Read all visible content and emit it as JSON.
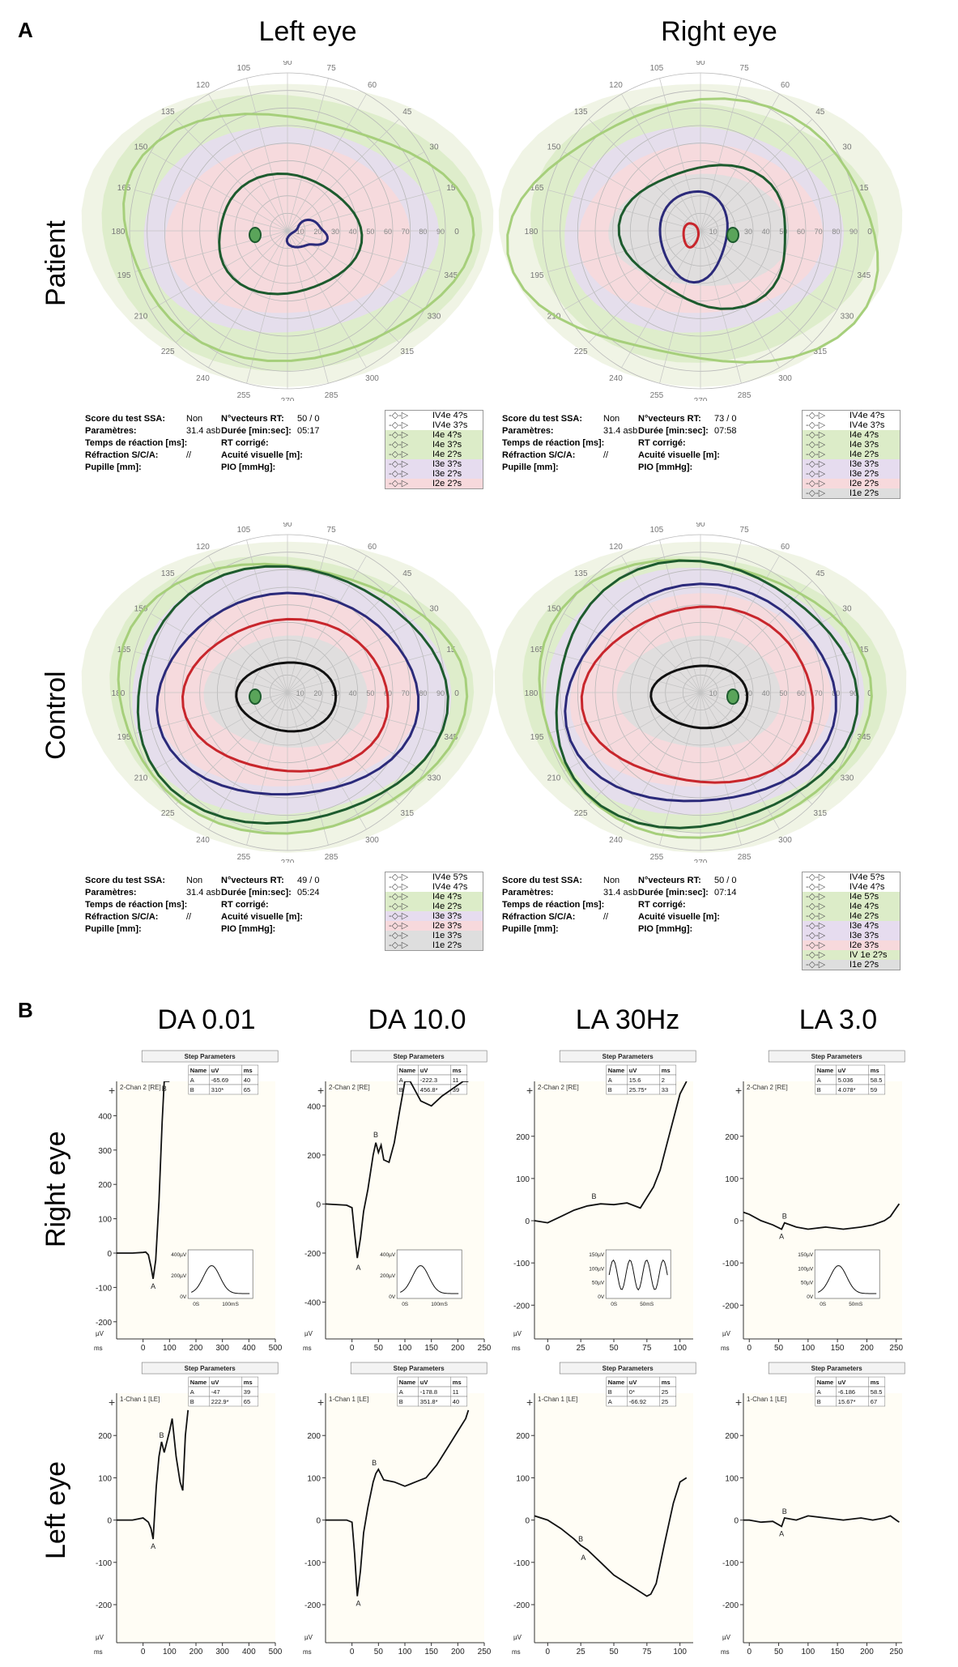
{
  "panels": {
    "a": "A",
    "b": "B"
  },
  "columns": {
    "left_eye": "Left eye",
    "right_eye": "Right eye"
  },
  "rows_a": {
    "patient": "Patient",
    "control": "Control"
  },
  "rows_b": {
    "right_eye": "Right eye",
    "left_eye": "Left eye"
  },
  "erg_titles": [
    "DA 0.01",
    "DA 10.0",
    "LA 30Hz",
    "LA 3.0"
  ],
  "polar": {
    "angle_labels": [
      "0",
      "15",
      "30",
      "45",
      "60",
      "75",
      "90",
      "105",
      "120",
      "135",
      "150",
      "165",
      "180",
      "195",
      "210",
      "225",
      "240",
      "255",
      "270",
      "285",
      "300",
      "315",
      "330",
      "345"
    ],
    "radial_labels": [
      "10",
      "20",
      "30",
      "40",
      "50",
      "60",
      "70",
      "80",
      "90"
    ]
  },
  "info_labels": {
    "score": "Score du test SSA:",
    "params": "Paramètres:",
    "temps": "Temps de réaction [ms]:",
    "refraction": "Réfraction S/C/A:",
    "pupille": "Pupille [mm]:",
    "vecteurs": "N°vecteurs RT:",
    "duree": "Durée [min:sec]:",
    "rt_corrige": "RT corrigé:",
    "acuite": "Acuité visuelle [m]:",
    "pio": "PIO [mmHg]:"
  },
  "fields": [
    {
      "score": "Non",
      "params": "31.4 asb",
      "refraction": "//",
      "vecteurs": "50 / 0",
      "duree": "05:17",
      "legend": [
        {
          "name": "IV4e",
          "t": "4?s"
        },
        {
          "name": "IV4e",
          "t": "3?s"
        },
        {
          "name": "I4e",
          "t": "4?s"
        },
        {
          "name": "I4e",
          "t": "3?s"
        },
        {
          "name": "I4e",
          "t": "2?s"
        },
        {
          "name": "I3e",
          "t": "3?s"
        },
        {
          "name": "I3e",
          "t": "2?s"
        },
        {
          "name": "I2e",
          "t": "2?s"
        }
      ]
    },
    {
      "score": "Non",
      "params": "31.4 asb",
      "refraction": "//",
      "vecteurs": "73 / 0",
      "duree": "07:58",
      "legend": [
        {
          "name": "IV4e",
          "t": "4?s"
        },
        {
          "name": "IV4e",
          "t": "3?s"
        },
        {
          "name": "I4e",
          "t": "4?s"
        },
        {
          "name": "I4e",
          "t": "3?s"
        },
        {
          "name": "I4e",
          "t": "2?s"
        },
        {
          "name": "I3e",
          "t": "3?s"
        },
        {
          "name": "I3e",
          "t": "2?s"
        },
        {
          "name": "I2e",
          "t": "2?s"
        },
        {
          "name": "I1e",
          "t": "2?s"
        }
      ]
    },
    {
      "score": "Non",
      "params": "31.4 asb",
      "refraction": "//",
      "vecteurs": "49 / 0",
      "duree": "05:24",
      "legend": [
        {
          "name": "IV4e",
          "t": "5?s"
        },
        {
          "name": "IV4e",
          "t": "4?s"
        },
        {
          "name": "I4e",
          "t": "4?s"
        },
        {
          "name": "I4e",
          "t": "2?s"
        },
        {
          "name": "I3e",
          "t": "3?s"
        },
        {
          "name": "I2e",
          "t": "3?s"
        },
        {
          "name": "I1e",
          "t": "3?s"
        },
        {
          "name": "I1e",
          "t": "2?s"
        }
      ]
    },
    {
      "score": "Non",
      "params": "31.4 asb",
      "refraction": "//",
      "vecteurs": "50 / 0",
      "duree": "07:14",
      "legend": [
        {
          "name": "IV4e",
          "t": "5?s"
        },
        {
          "name": "IV4e",
          "t": "4?s"
        },
        {
          "name": "I4e",
          "t": "5?s"
        },
        {
          "name": "I4e",
          "t": "4?s"
        },
        {
          "name": "I4e",
          "t": "2?s"
        },
        {
          "name": "I3e",
          "t": "4?s"
        },
        {
          "name": "I3e",
          "t": "3?s"
        },
        {
          "name": "I2e",
          "t": "3?s"
        },
        {
          "name": "IV 1e",
          "t": "2?s"
        },
        {
          "name": "I1e",
          "t": "2?s"
        }
      ]
    }
  ],
  "chart_data": [
    {
      "type": "line",
      "title": "DA 0.01 – Right eye",
      "channel": "2-Chan 2 [RE]",
      "step_parameters": "Step Parameters",
      "xlabel": "ms",
      "ylabel": "µV",
      "xlim": [
        -100,
        500
      ],
      "ylim": [
        -250,
        500
      ],
      "xticks": [
        0,
        100,
        200,
        300,
        400,
        500
      ],
      "yticks": [
        -200,
        -100,
        0,
        100,
        200,
        300,
        400
      ],
      "x": [
        -100,
        -40,
        0,
        10,
        20,
        30,
        38,
        48,
        60,
        72,
        80,
        90,
        100
      ],
      "y": [
        0,
        0,
        2,
        3,
        -5,
        -40,
        -75,
        -20,
        150,
        380,
        500,
        500,
        500
      ],
      "markers": [
        {
          "label": "A",
          "x": 38,
          "y": -75
        },
        {
          "label": "B",
          "x": 80,
          "y": 460
        }
      ],
      "table": {
        "headers": [
          "Name",
          "uV",
          "ms"
        ],
        "rows": [
          [
            "A",
            "-65.69",
            "40"
          ],
          [
            "B",
            "310*",
            "65"
          ]
        ]
      },
      "inset": {
        "yticks": [
          "400µV",
          "200µV",
          "0V"
        ],
        "xticks": [
          "0S",
          "100mS"
        ]
      }
    },
    {
      "type": "line",
      "title": "DA 10.0 – Right eye",
      "channel": "2-Chan 2 [RE]",
      "step_parameters": "Step Parameters",
      "xlabel": "ms",
      "ylabel": "µV",
      "xlim": [
        -50,
        250
      ],
      "ylim": [
        -550,
        500
      ],
      "xticks": [
        0,
        50,
        100,
        150,
        200,
        250
      ],
      "yticks": [
        -400,
        -200,
        0,
        200,
        400
      ],
      "x": [
        -50,
        -10,
        0,
        5,
        10,
        16,
        22,
        30,
        40,
        45,
        50,
        55,
        60,
        70,
        80,
        90,
        100,
        110,
        130,
        150,
        170,
        190,
        210,
        220
      ],
      "y": [
        0,
        -5,
        -15,
        -120,
        -220,
        -140,
        -30,
        60,
        200,
        250,
        210,
        240,
        180,
        170,
        250,
        380,
        500,
        500,
        420,
        400,
        440,
        470,
        500,
        500
      ],
      "markers": [
        {
          "label": "A",
          "x": 12,
          "y": -230
        },
        {
          "label": "B",
          "x": 45,
          "y": 255
        }
      ],
      "table": {
        "headers": [
          "Name",
          "uV",
          "ms"
        ],
        "rows": [
          [
            "A",
            "-222.3",
            "11"
          ],
          [
            "B",
            "456.8*",
            "39"
          ]
        ]
      },
      "inset": {
        "yticks": [
          "400µV",
          "200µV",
          "0V"
        ],
        "xticks": [
          "0S",
          "100mS"
        ]
      }
    },
    {
      "type": "line",
      "title": "LA 30Hz – Right eye",
      "channel": "2-Chan 2 [RE]",
      "step_parameters": "Step Parameters",
      "xlabel": "ms",
      "ylabel": "µV",
      "xlim": [
        -10,
        110
      ],
      "ylim": [
        -280,
        330
      ],
      "xticks": [
        0,
        25,
        50,
        75,
        100
      ],
      "yticks": [
        -200,
        -100,
        0,
        100,
        200
      ],
      "x": [
        -10,
        0,
        10,
        20,
        30,
        40,
        50,
        60,
        70,
        75,
        80,
        85,
        90,
        95,
        100,
        105
      ],
      "y": [
        0,
        -5,
        10,
        25,
        35,
        40,
        38,
        42,
        30,
        55,
        80,
        120,
        180,
        240,
        300,
        330
      ],
      "markers": [
        {
          "label": "B",
          "x": 35,
          "y": 42
        }
      ],
      "table": {
        "headers": [
          "Name",
          "uV",
          "ms"
        ],
        "rows": [
          [
            "A",
            "15.6",
            "2"
          ],
          [
            "B",
            "25.75*",
            "33"
          ]
        ]
      },
      "inset": {
        "yticks": [
          "150µV",
          "100µV",
          "50µV",
          "0V"
        ],
        "xticks": [
          "0S",
          "50mS"
        ]
      }
    },
    {
      "type": "line",
      "title": "LA 3.0 – Right eye",
      "channel": "2-Chan 2 [RE]",
      "step_parameters": "Step Parameters",
      "xlabel": "ms",
      "ylabel": "µV",
      "xlim": [
        -10,
        260
      ],
      "ylim": [
        -280,
        330
      ],
      "xticks": [
        0,
        50,
        100,
        150,
        200,
        250
      ],
      "yticks": [
        -200,
        -100,
        0,
        100,
        200
      ],
      "x": [
        -10,
        0,
        20,
        40,
        55,
        60,
        80,
        100,
        130,
        160,
        190,
        210,
        230,
        240,
        250,
        255
      ],
      "y": [
        20,
        15,
        0,
        -10,
        -20,
        -5,
        -15,
        -20,
        -15,
        -20,
        -15,
        -10,
        0,
        10,
        30,
        40
      ],
      "markers": [
        {
          "label": "A",
          "x": 55,
          "y": -20
        },
        {
          "label": "B",
          "x": 60,
          "y": -5
        }
      ],
      "table": {
        "headers": [
          "Name",
          "uV",
          "ms"
        ],
        "rows": [
          [
            "A",
            "5.036",
            "58.5"
          ],
          [
            "B",
            "4.078*",
            "59"
          ]
        ]
      },
      "inset": {
        "yticks": [
          "150µV",
          "100µV",
          "50µV",
          "0V"
        ],
        "xticks": [
          "0S",
          "50mS"
        ]
      }
    },
    {
      "type": "line",
      "title": "DA 0.01 – Left eye",
      "channel": "1-Chan 1 [LE]",
      "step_parameters": "Step Parameters",
      "xlabel": "ms",
      "ylabel": "µV",
      "xlim": [
        -100,
        500
      ],
      "ylim": [
        -290,
        300
      ],
      "xticks": [
        0,
        100,
        200,
        300,
        400,
        500
      ],
      "yticks": [
        -200,
        -100,
        0,
        100,
        200
      ],
      "x": [
        -100,
        -40,
        0,
        20,
        30,
        38,
        50,
        60,
        70,
        80,
        100,
        110,
        125,
        140,
        150,
        160,
        170
      ],
      "y": [
        0,
        0,
        5,
        -5,
        -20,
        -45,
        80,
        150,
        185,
        160,
        210,
        240,
        150,
        90,
        70,
        200,
        260
      ],
      "markers": [
        {
          "label": "A",
          "x": 38,
          "y": -45
        },
        {
          "label": "B",
          "x": 70,
          "y": 185
        }
      ],
      "table": {
        "headers": [
          "Name",
          "uV",
          "ms"
        ],
        "rows": [
          [
            "A",
            "-47",
            "39"
          ],
          [
            "B",
            "222.9*",
            "65"
          ]
        ]
      }
    },
    {
      "type": "line",
      "title": "DA 10.0 – Left eye",
      "channel": "1-Chan 1 [LE]",
      "step_parameters": "Step Parameters",
      "xlabel": "ms",
      "ylabel": "µV",
      "xlim": [
        -50,
        250
      ],
      "ylim": [
        -290,
        300
      ],
      "xticks": [
        0,
        50,
        100,
        150,
        200,
        250
      ],
      "yticks": [
        -200,
        -100,
        0,
        100,
        200
      ],
      "x": [
        -50,
        -10,
        0,
        5,
        10,
        16,
        22,
        30,
        40,
        45,
        50,
        60,
        80,
        100,
        120,
        140,
        160,
        180,
        200,
        215,
        220
      ],
      "y": [
        0,
        0,
        -5,
        -80,
        -180,
        -120,
        -30,
        30,
        90,
        110,
        120,
        95,
        90,
        80,
        90,
        100,
        130,
        170,
        210,
        240,
        260
      ],
      "markers": [
        {
          "label": "A",
          "x": 12,
          "y": -180
        },
        {
          "label": "B",
          "x": 42,
          "y": 120
        }
      ],
      "table": {
        "headers": [
          "Name",
          "uV",
          "ms"
        ],
        "rows": [
          [
            "A",
            "-178.8",
            "11"
          ],
          [
            "B",
            "351.8*",
            "40"
          ]
        ]
      }
    },
    {
      "type": "line",
      "title": "LA 30Hz – Left eye",
      "channel": "1-Chan 1 [LE]",
      "step_parameters": "Step Parameters",
      "xlabel": "ms",
      "ylabel": "µV",
      "xlim": [
        -10,
        110
      ],
      "ylim": [
        -290,
        300
      ],
      "xticks": [
        0,
        25,
        50,
        75,
        100
      ],
      "yticks": [
        -200,
        -100,
        0,
        100,
        200
      ],
      "x": [
        -10,
        0,
        10,
        20,
        25,
        30,
        40,
        50,
        60,
        70,
        75,
        78,
        82,
        88,
        95,
        100,
        105
      ],
      "y": [
        10,
        0,
        -20,
        -45,
        -60,
        -70,
        -100,
        -130,
        -150,
        -170,
        -180,
        -175,
        -150,
        -60,
        40,
        90,
        100
      ],
      "markers": [
        {
          "label": "B",
          "x": 25,
          "y": -60
        },
        {
          "label": "A",
          "x": 27,
          "y": -72
        }
      ],
      "table": {
        "headers": [
          "Name",
          "uV",
          "ms"
        ],
        "rows": [
          [
            "B",
            "0*",
            "25"
          ],
          [
            "A",
            "-66.92",
            "25"
          ]
        ]
      }
    },
    {
      "type": "line",
      "title": "LA 3.0 – Left eye",
      "channel": "1-Chan 1 [LE]",
      "step_parameters": "Step Parameters",
      "xlabel": "ms",
      "ylabel": "µV",
      "xlim": [
        -10,
        260
      ],
      "ylim": [
        -290,
        300
      ],
      "xticks": [
        0,
        50,
        100,
        150,
        200,
        250
      ],
      "yticks": [
        -200,
        -100,
        0,
        100,
        200
      ],
      "x": [
        -10,
        0,
        20,
        40,
        55,
        60,
        80,
        100,
        130,
        160,
        190,
        210,
        230,
        240,
        250,
        255
      ],
      "y": [
        0,
        0,
        -5,
        -3,
        -15,
        5,
        0,
        10,
        5,
        0,
        5,
        0,
        5,
        10,
        0,
        -5
      ],
      "markers": [
        {
          "label": "A",
          "x": 55,
          "y": -15
        },
        {
          "label": "B",
          "x": 60,
          "y": 5
        }
      ],
      "table": {
        "headers": [
          "Name",
          "uV",
          "ms"
        ],
        "rows": [
          [
            "A",
            "-6.186",
            "58.5"
          ],
          [
            "B",
            "15.67*",
            "67"
          ]
        ]
      }
    }
  ]
}
